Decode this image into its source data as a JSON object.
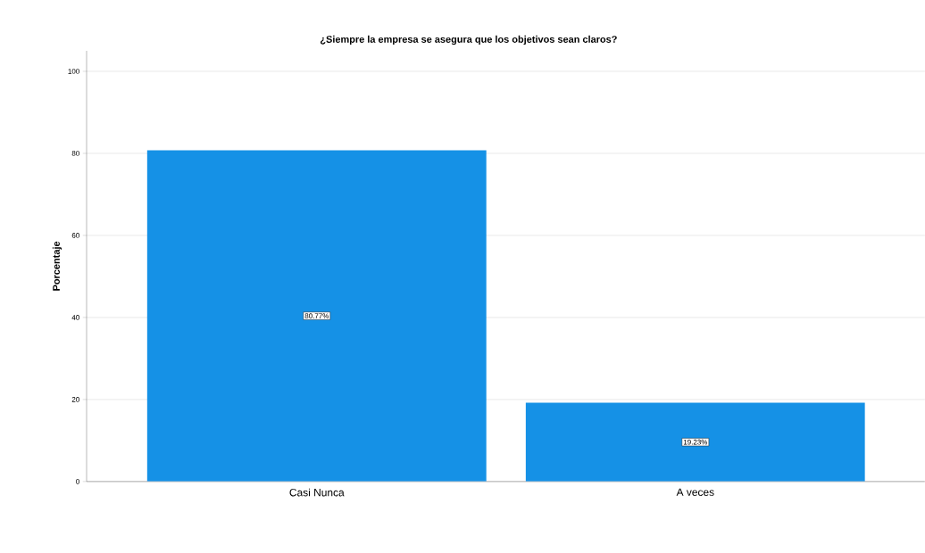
{
  "chart_data": {
    "type": "bar",
    "title": "¿Siempre la empresa se asegura que los objetivos sean claros?",
    "ylabel": "Porcentaje",
    "categories": [
      "Casi Nunca",
      "A veces"
    ],
    "values": [
      80.77,
      19.23
    ],
    "value_labels": [
      "80.77%",
      "19.23%"
    ],
    "color": "#1591e6",
    "ylim": [
      0,
      105
    ],
    "yticks": [
      0,
      20,
      40,
      60,
      80,
      100
    ],
    "grid": "y"
  }
}
